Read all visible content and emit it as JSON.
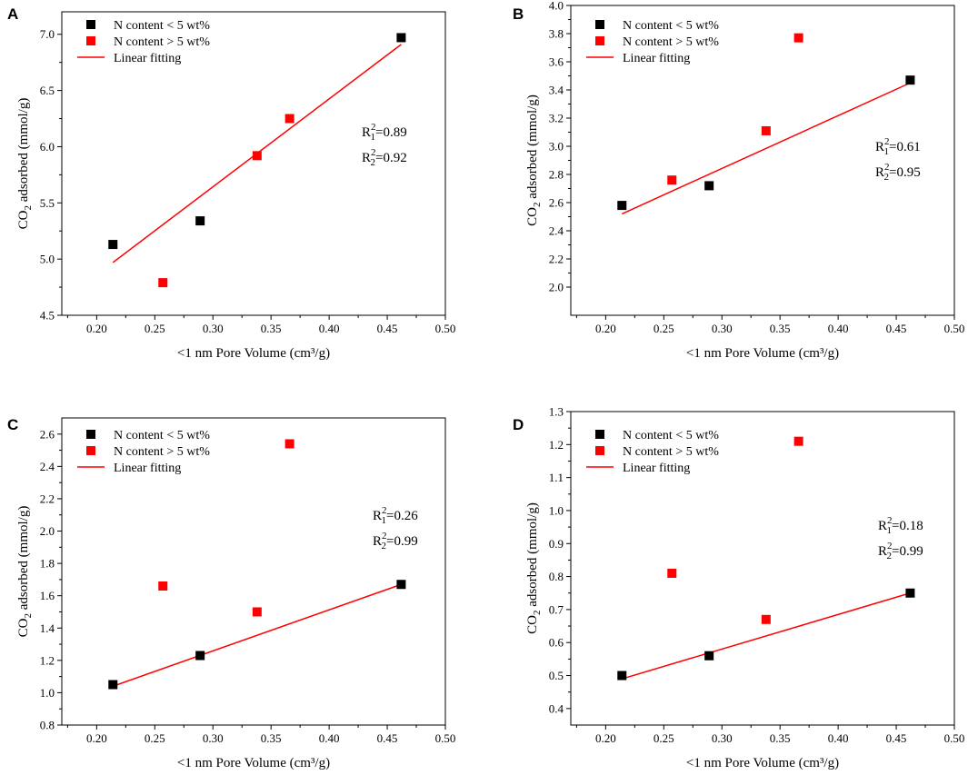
{
  "chart_data": [
    {
      "panel": "A",
      "type": "scatter",
      "xlabel": "<1 nm Pore Volume (cm³/g)",
      "ylabel": "CO2 adsorbed (mmol/g)",
      "ylabel_main": "CO",
      "ylabel_sub": "2",
      "ylabel_rest": " adsorbed (mmol/g)",
      "xlim": [
        0.17,
        0.5
      ],
      "ylim": [
        4.5,
        7.2
      ],
      "xticks": [
        "0.20",
        "0.25",
        "0.30",
        "0.35",
        "0.40",
        "0.45",
        "0.50"
      ],
      "yticks": [
        "4.5",
        "5.0",
        "5.5",
        "6.0",
        "6.5",
        "7.0"
      ],
      "series": [
        {
          "name": "N content < 5 wt%",
          "color": "#000000",
          "x": [
            0.214,
            0.289,
            0.462
          ],
          "y": [
            5.13,
            5.34,
            6.97
          ]
        },
        {
          "name": "N content > 5 wt%",
          "color": "#ff0000",
          "x": [
            0.257,
            0.338,
            0.366
          ],
          "y": [
            4.79,
            5.92,
            6.25
          ]
        }
      ],
      "fit": {
        "name": "Linear fitting",
        "color": "#ff0000",
        "x": [
          0.214,
          0.462
        ],
        "y": [
          4.97,
          6.91
        ]
      },
      "r2": [
        {
          "base": "R",
          "sup": "2",
          "sub": "1",
          "value": "=0.89"
        },
        {
          "base": "R",
          "sup": "2",
          "sub": "2",
          "value": "=0.92"
        }
      ]
    },
    {
      "panel": "B",
      "type": "scatter",
      "xlabel": "<1 nm Pore Volume (cm³/g)",
      "ylabel": "CO2 adsorbed (mmol/g)",
      "ylabel_main": "CO",
      "ylabel_sub": "2",
      "ylabel_rest": " adsorbed (mmol/g)",
      "xlim": [
        0.17,
        0.5
      ],
      "ylim": [
        1.8,
        4.0
      ],
      "xticks": [
        "0.20",
        "0.25",
        "0.30",
        "0.35",
        "0.40",
        "0.45",
        "0.50"
      ],
      "yticks": [
        "2.0",
        "2.2",
        "2.4",
        "2.6",
        "2.8",
        "3.0",
        "3.2",
        "3.4",
        "3.6",
        "3.8",
        "4.0"
      ],
      "series": [
        {
          "name": "N content < 5 wt%",
          "color": "#000000",
          "x": [
            0.214,
            0.289,
            0.462
          ],
          "y": [
            2.58,
            2.72,
            3.47
          ]
        },
        {
          "name": "N content > 5 wt%",
          "color": "#ff0000",
          "x": [
            0.257,
            0.338,
            0.366
          ],
          "y": [
            2.76,
            3.11,
            3.77
          ]
        }
      ],
      "fit": {
        "name": "Linear fitting",
        "color": "#ff0000",
        "x": [
          0.214,
          0.462
        ],
        "y": [
          2.52,
          3.45
        ]
      },
      "r2": [
        {
          "base": "R",
          "sup": "2",
          "sub": "1",
          "value": "=0.61"
        },
        {
          "base": "R",
          "sup": "2",
          "sub": "2",
          "value": "=0.95"
        }
      ]
    },
    {
      "panel": "C",
      "type": "scatter",
      "xlabel": "<1 nm Pore Volume (cm³/g)",
      "ylabel": "CO2 adsorbed (mmol/g)",
      "ylabel_main": "CO",
      "ylabel_sub": "2",
      "ylabel_rest": " adsorbed (mmol/g)",
      "xlim": [
        0.17,
        0.5
      ],
      "ylim": [
        0.8,
        2.7
      ],
      "xticks": [
        "0.20",
        "0.25",
        "0.30",
        "0.35",
        "0.40",
        "0.45",
        "0.50"
      ],
      "yticks": [
        "0.8",
        "1.0",
        "1.2",
        "1.4",
        "1.6",
        "1.8",
        "2.0",
        "2.2",
        "2.4",
        "2.6"
      ],
      "series": [
        {
          "name": "N content < 5 wt%",
          "color": "#000000",
          "x": [
            0.214,
            0.289,
            0.462
          ],
          "y": [
            1.05,
            1.23,
            1.67
          ]
        },
        {
          "name": "N content > 5 wt%",
          "color": "#ff0000",
          "x": [
            0.257,
            0.338,
            0.366
          ],
          "y": [
            1.66,
            1.5,
            2.54
          ]
        }
      ],
      "fit": {
        "name": "Linear fitting",
        "color": "#ff0000",
        "x": [
          0.214,
          0.462
        ],
        "y": [
          1.04,
          1.67
        ]
      },
      "r2": [
        {
          "base": "R",
          "sup": "2",
          "sub": "1",
          "value": "=0.26"
        },
        {
          "base": "R",
          "sup": "2",
          "sub": "2",
          "value": "=0.99"
        }
      ]
    },
    {
      "panel": "D",
      "type": "scatter",
      "xlabel": "<1 nm Pore Volume (cm³/g)",
      "ylabel": "CO2 adsorbed (mmol/g)",
      "ylabel_main": "CO",
      "ylabel_sub": "2",
      "ylabel_rest": " adsorbed (mmol/g)",
      "xlim": [
        0.17,
        0.5
      ],
      "ylim": [
        0.35,
        1.3
      ],
      "xticks": [
        "0.20",
        "0.25",
        "0.30",
        "0.35",
        "0.40",
        "0.45",
        "0.50"
      ],
      "yticks": [
        "0.4",
        "0.5",
        "0.6",
        "0.7",
        "0.8",
        "0.9",
        "1.0",
        "1.1",
        "1.2",
        "1.3"
      ],
      "series": [
        {
          "name": "N content < 5 wt%",
          "color": "#000000",
          "x": [
            0.214,
            0.289,
            0.462
          ],
          "y": [
            0.5,
            0.56,
            0.75
          ]
        },
        {
          "name": "N content > 5 wt%",
          "color": "#ff0000",
          "x": [
            0.257,
            0.338,
            0.366
          ],
          "y": [
            0.81,
            0.67,
            1.21
          ]
        }
      ],
      "fit": {
        "name": "Linear fitting",
        "color": "#ff0000",
        "x": [
          0.214,
          0.462
        ],
        "y": [
          0.49,
          0.75
        ]
      },
      "r2": [
        {
          "base": "R",
          "sup": "2",
          "sub": "1",
          "value": "=0.18"
        },
        {
          "base": "R",
          "sup": "2",
          "sub": "2",
          "value": "=0.99"
        }
      ]
    }
  ]
}
